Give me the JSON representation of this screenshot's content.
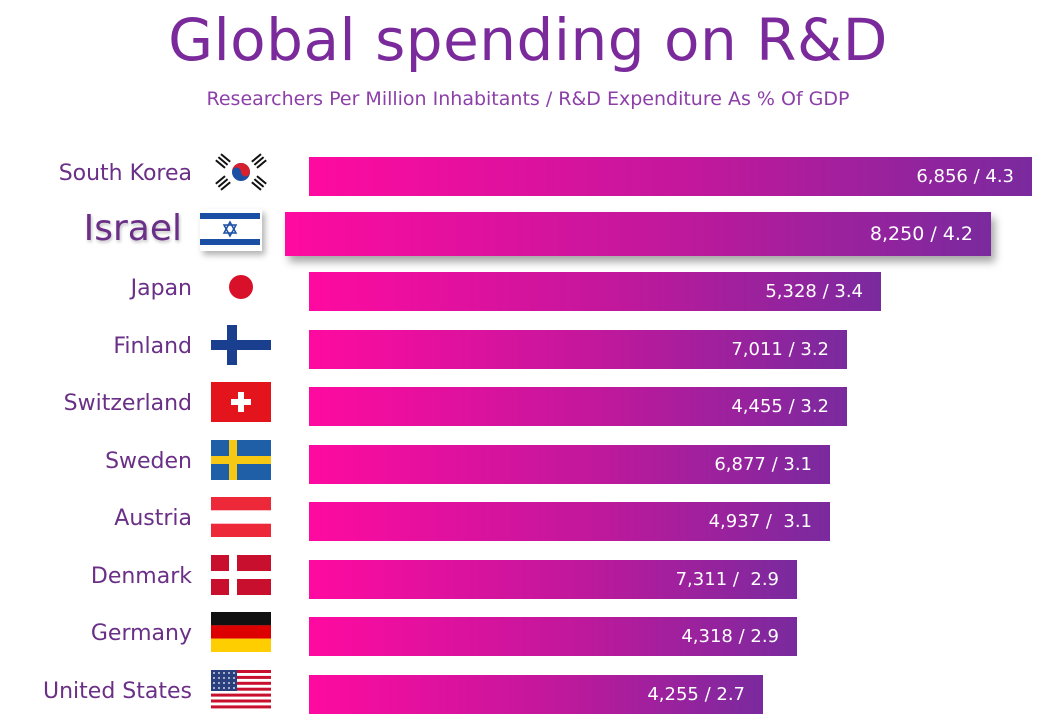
{
  "chart_data": {
    "type": "bar",
    "orientation": "horizontal",
    "title": "Global spending on R&D",
    "subtitle": "Researchers Per Million Inhabitants / R&D Expenditure As % Of GDP",
    "xlabel": "",
    "ylabel": "",
    "series": [
      {
        "name": "Researchers Per Million Inhabitants",
        "values": [
          6856,
          8250,
          5328,
          7011,
          4455,
          6877,
          4937,
          7311,
          4318,
          4255
        ]
      },
      {
        "name": "R&D Expenditure As % Of GDP",
        "values": [
          4.3,
          4.2,
          3.4,
          3.2,
          3.2,
          3.1,
          3.1,
          2.9,
          2.9,
          2.7
        ]
      }
    ],
    "bar_length_series": "R&D Expenditure As % Of GDP",
    "xlim": [
      0,
      4.3
    ],
    "grid": false,
    "highlight": "Israel",
    "rows": [
      {
        "country": "South Korea",
        "flag": "south-korea-flag",
        "label": "6,856 / 4.3",
        "gdp_pct": 4.3,
        "researchers": 6856
      },
      {
        "country": "Israel",
        "flag": "israel-flag",
        "label": "8,250 / 4.2",
        "gdp_pct": 4.2,
        "researchers": 8250
      },
      {
        "country": "Japan",
        "flag": "japan-flag",
        "label": "5,328 / 3.4",
        "gdp_pct": 3.4,
        "researchers": 5328
      },
      {
        "country": "Finland",
        "flag": "finland-flag",
        "label": "7,011 / 3.2",
        "gdp_pct": 3.2,
        "researchers": 7011
      },
      {
        "country": "Switzerland",
        "flag": "switzerland-flag",
        "label": "4,455 / 3.2",
        "gdp_pct": 3.2,
        "researchers": 4455
      },
      {
        "country": "Sweden",
        "flag": "sweden-flag",
        "label": "6,877 / 3.1",
        "gdp_pct": 3.1,
        "researchers": 6877
      },
      {
        "country": "Austria",
        "flag": "austria-flag",
        "label": "4,937 /  3.1",
        "gdp_pct": 3.1,
        "researchers": 4937
      },
      {
        "country": "Denmark",
        "flag": "denmark-flag",
        "label": "7,311 /  2.9",
        "gdp_pct": 2.9,
        "researchers": 7311
      },
      {
        "country": "Germany",
        "flag": "germany-flag",
        "label": "4,318 / 2.9",
        "gdp_pct": 2.9,
        "researchers": 4318
      },
      {
        "country": "United States",
        "flag": "united-states-flag",
        "label": "4,255 / 2.7",
        "gdp_pct": 2.7,
        "researchers": 4255
      }
    ]
  },
  "colors": {
    "title": "#7b2a9c",
    "label": "#6a2f86",
    "bar_start": "#ff0aa0",
    "bar_end": "#7a2a9e",
    "value_text": "#ffffff"
  }
}
